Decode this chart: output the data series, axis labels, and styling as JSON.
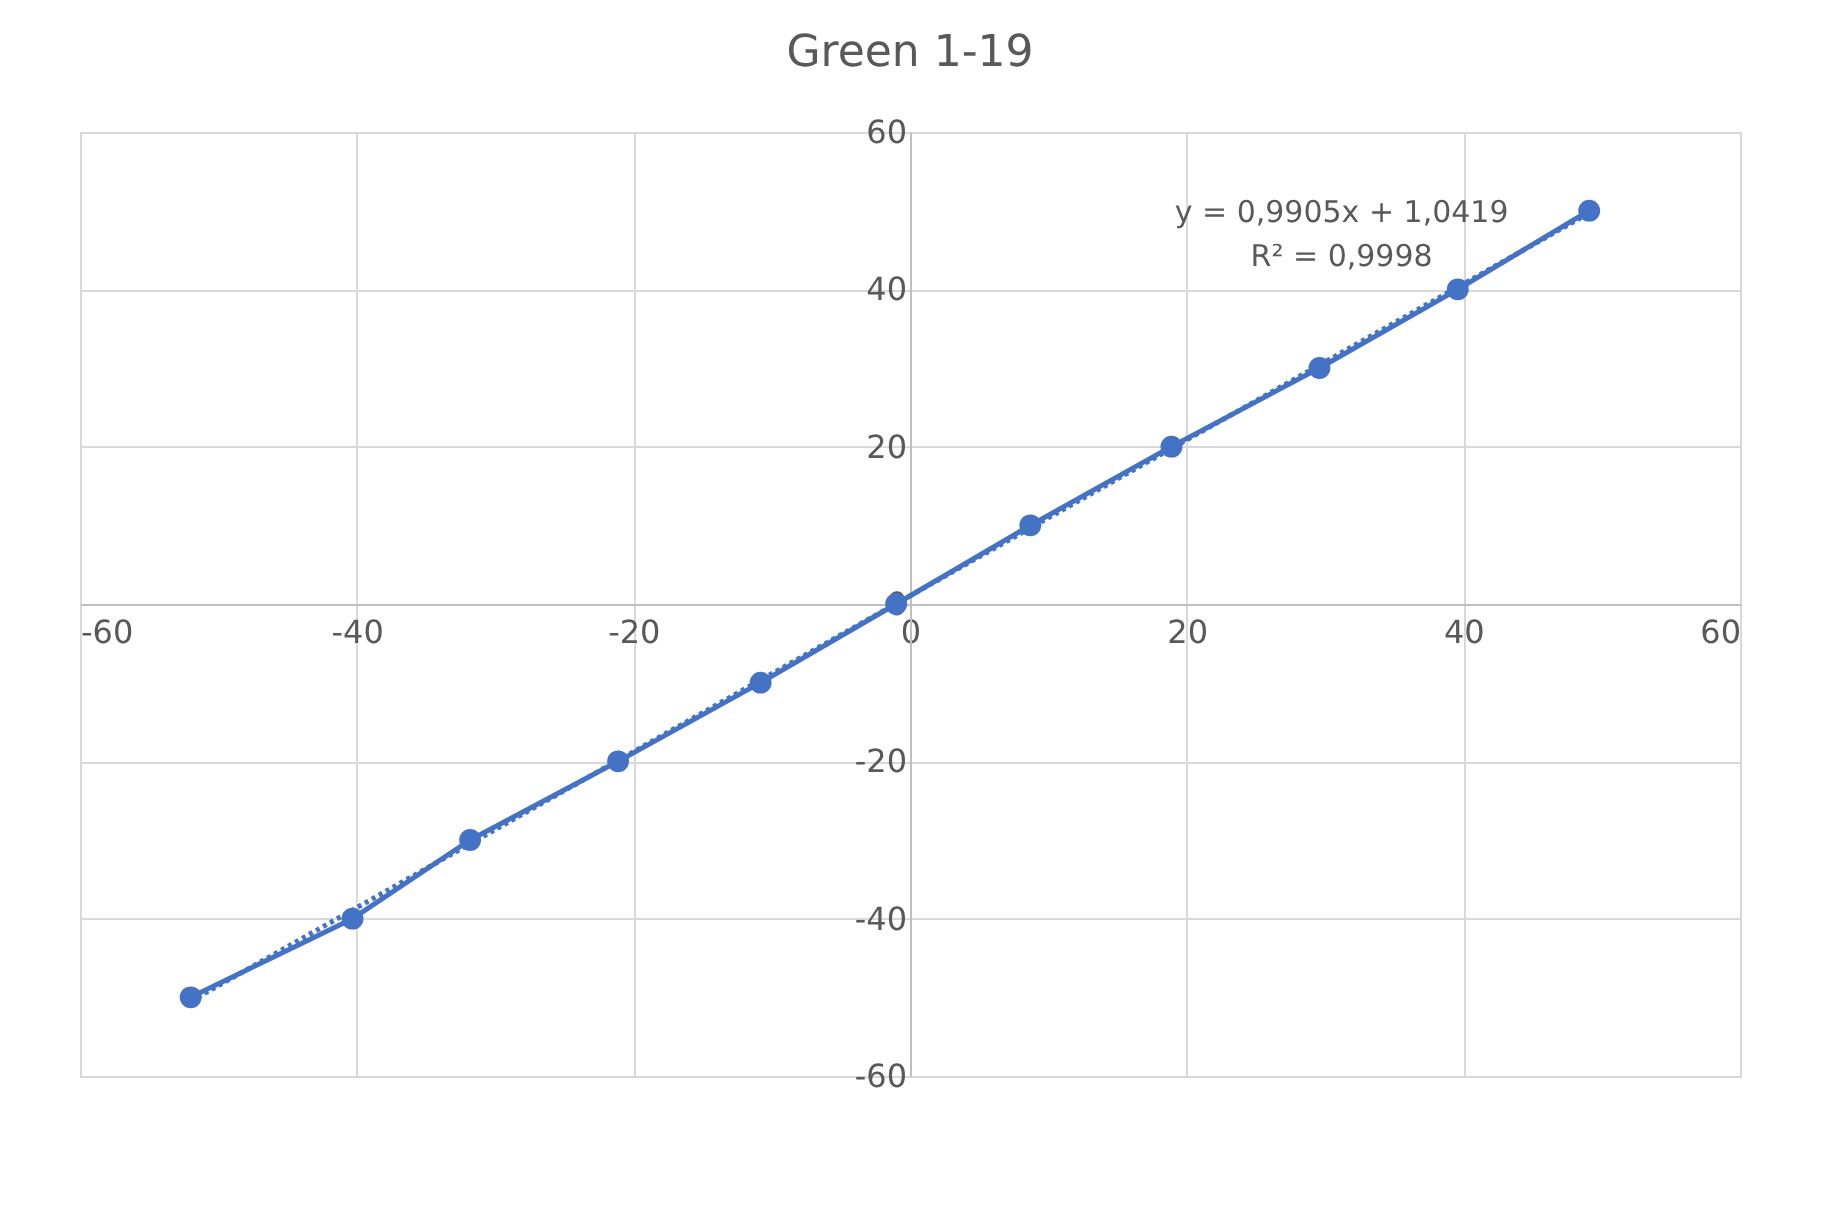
{
  "chart_data": {
    "type": "line",
    "title": "Green 1-19",
    "x": [
      -52.0,
      -40.3,
      -31.8,
      -21.1,
      -10.8,
      -1.0,
      8.7,
      18.9,
      29.6,
      39.6,
      49.1
    ],
    "series": [
      {
        "color": "#4472c4",
        "marker": "circle",
        "line_style": "solid",
        "values": [
          -50,
          -40,
          -30,
          -20,
          -10,
          0,
          10,
          20,
          30,
          40,
          50
        ]
      },
      {
        "color": "#4472c4",
        "marker": "none",
        "line_style": "dotted",
        "x": [
          -52.0,
          49.1
        ],
        "values": [
          -50.5,
          49.7
        ]
      }
    ],
    "annotations": [
      "y = 0,9905x + 1,0419",
      "R² = 0,9998"
    ],
    "xlim": [
      -60,
      60
    ],
    "xticks": [
      -60,
      -40,
      -20,
      0,
      20,
      40,
      60
    ],
    "ylim": [
      -60,
      60
    ],
    "yticks": [
      -60,
      -40,
      -20,
      0,
      20,
      40,
      60
    ],
    "grid": true
  }
}
